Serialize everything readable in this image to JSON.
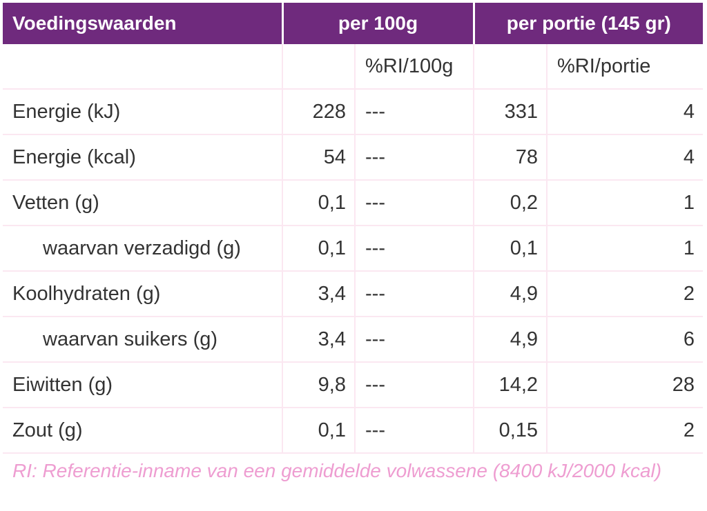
{
  "header": {
    "col_name": "Voedingswaarden",
    "col_per100": "per 100g",
    "col_portion": "per portie (145 gr)"
  },
  "subheader": {
    "ri_100": "%RI/100g",
    "ri_portion": "%RI/portie"
  },
  "rows": [
    {
      "label": "Energie (kJ)",
      "per100": "228",
      "ri100": "---",
      "portion": "331",
      "riportion": "4"
    },
    {
      "label": "Energie (kcal)",
      "per100": "54",
      "ri100": "---",
      "portion": "78",
      "riportion": "4"
    },
    {
      "label": "Vetten (g)",
      "per100": "0,1",
      "ri100": "---",
      "portion": "0,2",
      "riportion": "1"
    },
    {
      "label": "waarvan verzadigd (g)",
      "per100": "0,1",
      "ri100": "---",
      "portion": "0,1",
      "riportion": "1"
    },
    {
      "label": "Koolhydraten (g)",
      "per100": "3,4",
      "ri100": "---",
      "portion": "4,9",
      "riportion": "2"
    },
    {
      "label": "waarvan suikers (g)",
      "per100": "3,4",
      "ri100": "---",
      "portion": "4,9",
      "riportion": "6"
    },
    {
      "label": "Eiwitten (g)",
      "per100": "9,8",
      "ri100": "---",
      "portion": "14,2",
      "riportion": "28"
    },
    {
      "label": "Zout (g)",
      "per100": "0,1",
      "ri100": "---",
      "portion": "0,15",
      "riportion": "2"
    }
  ],
  "footnote": "RI: Referentie-inname van een gemiddelde volwassene (8400 kJ/2000 kcal)",
  "colors": {
    "header_bg": "#6f2a7d",
    "grid": "#fbe7f1",
    "footnote": "#ee9dd1"
  }
}
